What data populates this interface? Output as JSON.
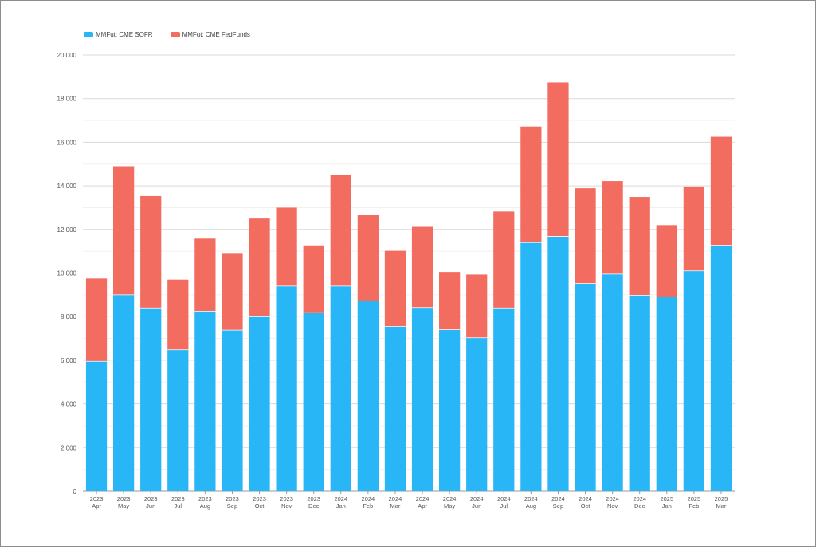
{
  "chart_data": {
    "type": "bar",
    "stacked": true,
    "categories": [
      [
        "2023",
        "Apr"
      ],
      [
        "2023",
        "May"
      ],
      [
        "2023",
        "Jun"
      ],
      [
        "2023",
        "Jul"
      ],
      [
        "2023",
        "Aug"
      ],
      [
        "2023",
        "Sep"
      ],
      [
        "2023",
        "Oct"
      ],
      [
        "2023",
        "Nov"
      ],
      [
        "2023",
        "Dec"
      ],
      [
        "2024",
        "Jan"
      ],
      [
        "2024",
        "Feb"
      ],
      [
        "2024",
        "Mar"
      ],
      [
        "2024",
        "Apr"
      ],
      [
        "2024",
        "May"
      ],
      [
        "2024",
        "Jun"
      ],
      [
        "2024",
        "Jul"
      ],
      [
        "2024",
        "Aug"
      ],
      [
        "2024",
        "Sep"
      ],
      [
        "2024",
        "Oct"
      ],
      [
        "2024",
        "Nov"
      ],
      [
        "2024",
        "Dec"
      ],
      [
        "2025",
        "Jan"
      ],
      [
        "2025",
        "Feb"
      ],
      [
        "2025",
        "Mar"
      ]
    ],
    "series": [
      {
        "name": "MMFut: CME SOFR",
        "color": "#29b6f6",
        "values": [
          5950,
          9000,
          8400,
          6480,
          8250,
          7380,
          8030,
          9400,
          8180,
          9400,
          8720,
          7550,
          8420,
          7400,
          7030,
          8400,
          11400,
          11680,
          9520,
          9950,
          8980,
          8900,
          10100,
          11280
        ]
      },
      {
        "name": "MMFut: CME FedFunds",
        "color": "#f26d60",
        "values": [
          3800,
          5900,
          5130,
          3220,
          3330,
          3540,
          4470,
          3600,
          3090,
          5080,
          3930,
          3470,
          3700,
          2650,
          2900,
          4420,
          5320,
          7060,
          4370,
          4270,
          4510,
          3300,
          3870,
          4970
        ]
      }
    ],
    "ylim": [
      0,
      20000
    ],
    "yticks": [
      "0",
      "2,000",
      "4,000",
      "6,000",
      "8,000",
      "10,000",
      "12,000",
      "14,000",
      "16,000",
      "18,000",
      "20,000"
    ],
    "grid": true,
    "legend_position": "top-left"
  }
}
